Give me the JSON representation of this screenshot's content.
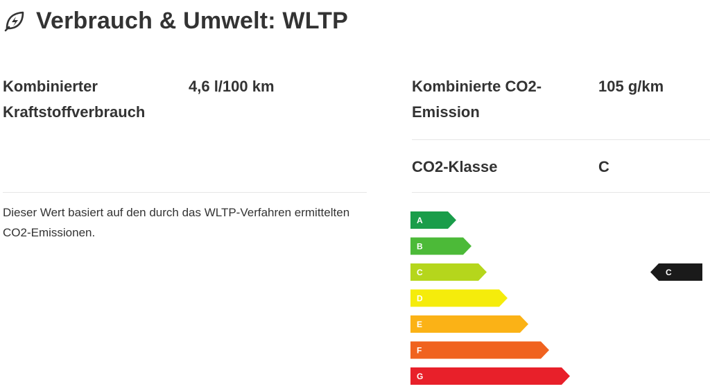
{
  "header": {
    "title": "Verbrauch & Umwelt: WLTP",
    "icon": "leaf-bolt-icon"
  },
  "fuel": {
    "label": "Kombinierter Kraftstoffverbrauch",
    "value": "4,6 l/100 km",
    "note": "Dieser Wert basiert auf den durch das WLTP-Verfahren ermittelten CO2-Emissionen."
  },
  "co2": {
    "label": "Kombinierte CO2-Emission",
    "value": "105 g/km"
  },
  "co2_class": {
    "label": "CO2-Klasse",
    "value": "C"
  },
  "efficiency_scale": {
    "classes": [
      {
        "letter": "A",
        "color": "#1a9d4a"
      },
      {
        "letter": "B",
        "color": "#4cba38"
      },
      {
        "letter": "C",
        "color": "#b5d61c"
      },
      {
        "letter": "D",
        "color": "#f5ec0b"
      },
      {
        "letter": "E",
        "color": "#fbb216"
      },
      {
        "letter": "F",
        "color": "#f0621f"
      },
      {
        "letter": "G",
        "color": "#e8202a"
      }
    ],
    "active": "C",
    "marker_color": "#1a1a1a"
  }
}
